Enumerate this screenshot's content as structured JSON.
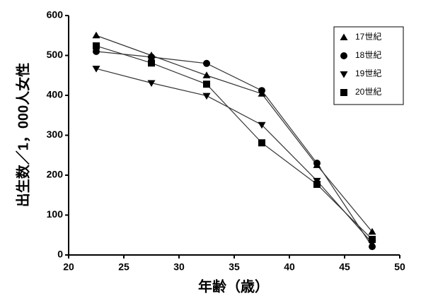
{
  "chart_data": {
    "type": "line",
    "x_label": "年齢（歳）",
    "y_label": "出生数／1，000人女性",
    "x": [
      22.5,
      27.5,
      32.5,
      37.5,
      42.5,
      47.5
    ],
    "series": [
      {
        "name": "17世紀",
        "color": "#000000",
        "marker": "triangle-up",
        "values": [
          550,
          500,
          450,
          404,
          225,
          58
        ]
      },
      {
        "name": "18世紀",
        "color": "#000000",
        "marker": "circle",
        "values": [
          510,
          496,
          480,
          412,
          230,
          21
        ]
      },
      {
        "name": "19世紀",
        "color": "#000000",
        "marker": "triangle-down",
        "values": [
          467,
          431,
          399,
          326,
          186,
          30
        ]
      },
      {
        "name": "20世紀",
        "color": "#000000",
        "marker": "square",
        "values": [
          524,
          481,
          428,
          281,
          177,
          39
        ]
      }
    ],
    "xlim": [
      20,
      50
    ],
    "xticks": [
      20,
      25,
      30,
      35,
      40,
      45,
      50
    ],
    "ylim": [
      0,
      600
    ],
    "yticks": [
      0,
      100,
      200,
      300,
      400,
      500,
      600
    ],
    "legend": "upper right"
  }
}
